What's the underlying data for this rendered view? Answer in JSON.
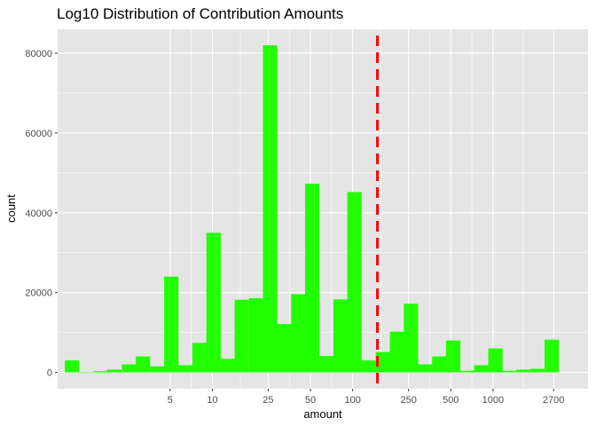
{
  "chart_data": {
    "type": "bar",
    "title": "Log10 Distribution of Contribution Amounts",
    "xlabel": "amount",
    "ylabel": "count",
    "x_scale": "log10",
    "x_ticks": [
      5,
      10,
      25,
      50,
      100,
      250,
      500,
      1000,
      2700
    ],
    "y_ticks": [
      0,
      20000,
      40000,
      60000,
      80000
    ],
    "xlim": [
      0.79,
      4750
    ],
    "ylim": [
      -4100,
      86000
    ],
    "bins": [
      {
        "x": 1.0,
        "count": 3000
      },
      {
        "x": 1.27,
        "count": 0
      },
      {
        "x": 1.6,
        "count": 300
      },
      {
        "x": 2.0,
        "count": 700
      },
      {
        "x": 2.55,
        "count": 2000
      },
      {
        "x": 3.2,
        "count": 4000
      },
      {
        "x": 4.05,
        "count": 1500
      },
      {
        "x": 5.1,
        "count": 24000
      },
      {
        "x": 6.45,
        "count": 1800
      },
      {
        "x": 8.1,
        "count": 7400
      },
      {
        "x": 10.2,
        "count": 35000
      },
      {
        "x": 12.9,
        "count": 3400
      },
      {
        "x": 16.2,
        "count": 18200
      },
      {
        "x": 20.5,
        "count": 18600
      },
      {
        "x": 25.8,
        "count": 82000
      },
      {
        "x": 32.5,
        "count": 12100
      },
      {
        "x": 41.0,
        "count": 19600
      },
      {
        "x": 51.5,
        "count": 47300
      },
      {
        "x": 65.0,
        "count": 4100
      },
      {
        "x": 82.0,
        "count": 18300
      },
      {
        "x": 103,
        "count": 45200
      },
      {
        "x": 130,
        "count": 3000
      },
      {
        "x": 164,
        "count": 5100
      },
      {
        "x": 207,
        "count": 10200
      },
      {
        "x": 260,
        "count": 17200
      },
      {
        "x": 328,
        "count": 2000
      },
      {
        "x": 414,
        "count": 4000
      },
      {
        "x": 520,
        "count": 8000
      },
      {
        "x": 656,
        "count": 400
      },
      {
        "x": 826,
        "count": 1800
      },
      {
        "x": 1040,
        "count": 6000
      },
      {
        "x": 1310,
        "count": 400
      },
      {
        "x": 1650,
        "count": 700
      },
      {
        "x": 2080,
        "count": 900
      },
      {
        "x": 2620,
        "count": 8200
      }
    ],
    "reference_line": {
      "x": 150,
      "style": "dashed",
      "color": "#ff0000"
    },
    "bar_color": "#22ff00",
    "panel_color": "#e5e5e5",
    "grid": true
  }
}
